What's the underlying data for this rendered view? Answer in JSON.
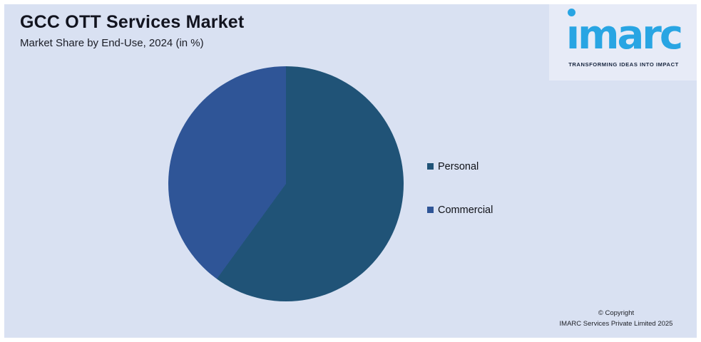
{
  "header": {
    "title": "GCC OTT Services Market",
    "subtitle": "Market Share by End-Use, 2024 (in %)"
  },
  "logo": {
    "brand": "imarc",
    "tagline": "TRANSFORMING IDEAS INTO IMPACT",
    "brand_color": "#29A5E3",
    "tagline_color": "#16243E"
  },
  "chart_data": {
    "type": "pie",
    "title": "GCC OTT Services Market",
    "subtitle": "Market Share by End-Use, 2024 (in %)",
    "categories": [
      "Personal",
      "Commercial"
    ],
    "values": [
      60,
      40
    ],
    "colors": [
      "#205377",
      "#2F5597"
    ],
    "start_angle_deg": 0,
    "direction": "clockwise",
    "legend_position": "right",
    "data_labels": false,
    "background": "#D9E1F2"
  },
  "footer": {
    "copyright_line1": "© Copyright",
    "copyright_line2": "IMARC Services Private Limited 2025"
  },
  "theme": {
    "background": "#D9E1F2",
    "logo_panel": "#E7EBF7",
    "outer_border": "#FFFFFF",
    "text": "#12141F"
  }
}
